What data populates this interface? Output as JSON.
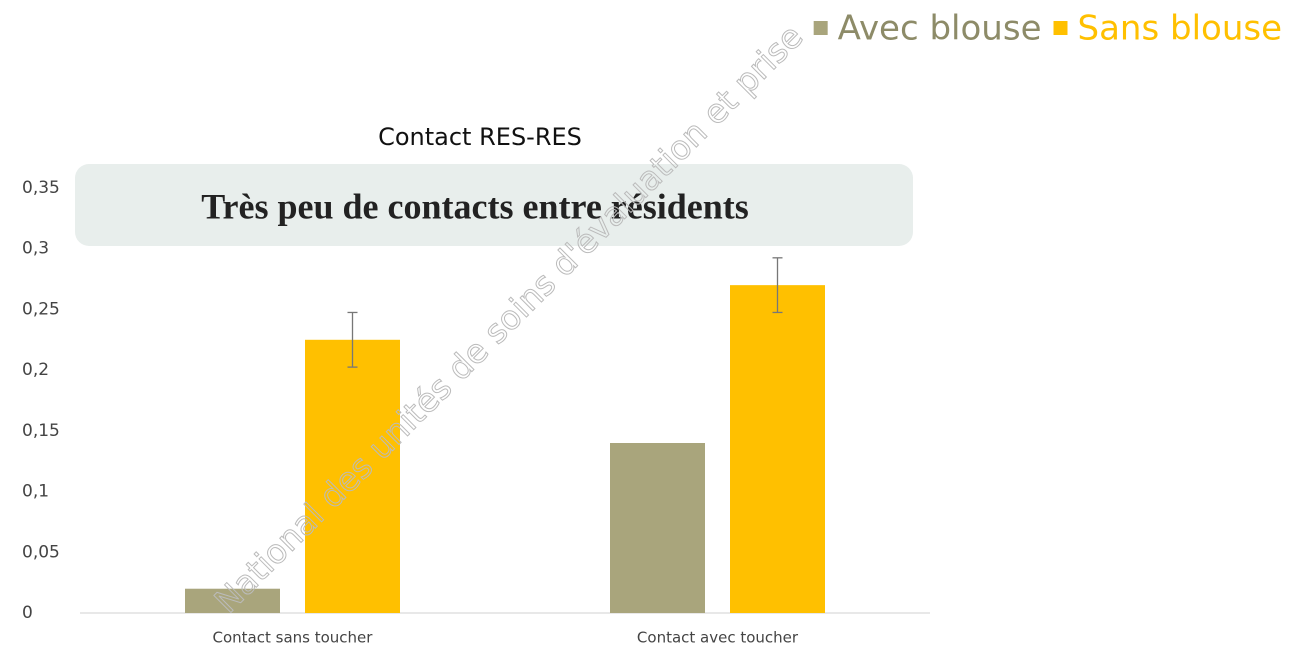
{
  "chart_data": {
    "type": "bar",
    "title": "Contact RES-RES",
    "annotation": "Très peu de contacts entre résidents",
    "watermark": "National des unités de soins d'évaluation et prise",
    "categories": [
      "Contact sans toucher",
      "Contact avec toucher"
    ],
    "series": [
      {
        "name": "Avec blouse",
        "color": "#a9a57c",
        "values": [
          0.02,
          0.14
        ]
      },
      {
        "name": "Sans blouse",
        "color": "#ffc000",
        "values": [
          0.225,
          0.27
        ],
        "errors": [
          0.0225,
          0.0225
        ]
      }
    ],
    "ylim": [
      0,
      0.35
    ],
    "yticks": [
      0,
      {
        "value": 0.05,
        "label": "0,05"
      },
      {
        "value": 0.1,
        "label": "0,1"
      },
      {
        "value": 0.15,
        "label": "0,15"
      },
      {
        "value": 0.2,
        "label": "0,2"
      },
      {
        "value": 0.25,
        "label": "0,25"
      },
      {
        "value": 0.3,
        "label": "0,3"
      },
      {
        "value": 0.35,
        "label": "0,35"
      }
    ],
    "legend": "top-right",
    "grid": false
  }
}
